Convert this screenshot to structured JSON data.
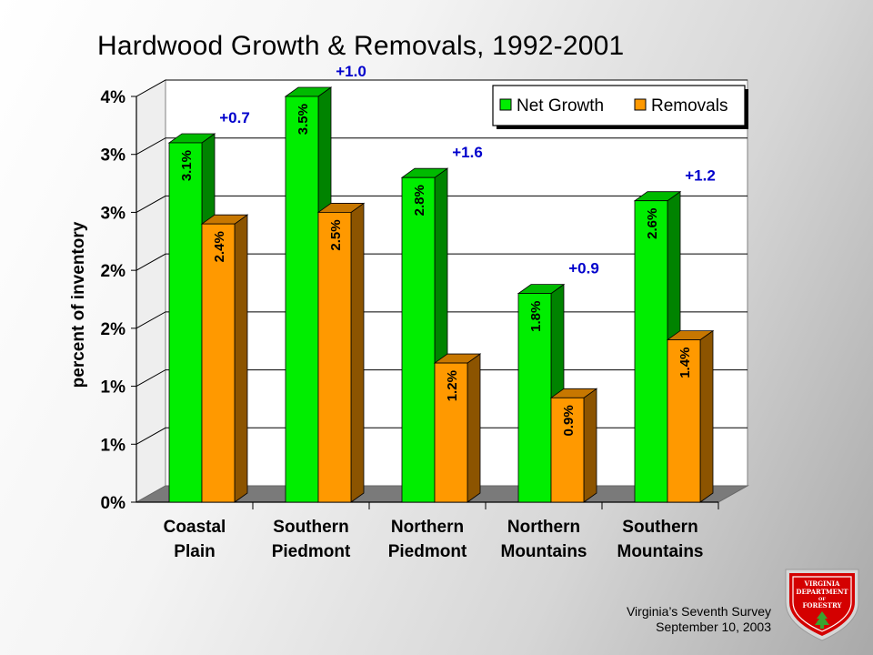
{
  "title": "Hardwood Growth & Removals, 1992-2001",
  "footer": {
    "line1": "Virginia’s Seventh Survey",
    "line2": "September 10, 2003"
  },
  "logo": {
    "line1": "VIRGINIA",
    "line2": "DEPARTMENT",
    "line3": "OF",
    "line4": "FORESTRY"
  },
  "chart_data": {
    "type": "bar",
    "title": "Hardwood Growth & Removals, 1992-2001",
    "ylabel": "percent of inventory",
    "xlabel": "",
    "categories": [
      [
        "Coastal",
        "Plain"
      ],
      [
        "Southern",
        "Piedmont"
      ],
      [
        "Northern",
        "Piedmont"
      ],
      [
        "Northern",
        "Mountains"
      ],
      [
        "Southern",
        "Mountains"
      ]
    ],
    "series": [
      {
        "name": "Net Growth",
        "color": "#00ee00",
        "values": [
          3.1,
          3.5,
          2.8,
          1.8,
          2.6
        ],
        "labels": [
          "3.1%",
          "3.5%",
          "2.8%",
          "1.8%",
          "2.6%"
        ]
      },
      {
        "name": "Removals",
        "color": "#ff9900",
        "values": [
          2.4,
          2.5,
          1.2,
          0.9,
          1.4
        ],
        "labels": [
          "2.4%",
          "2.5%",
          "1.2%",
          "0.9%",
          "1.4%"
        ]
      }
    ],
    "differences": [
      "+0.7",
      "+1.0",
      "+1.6",
      "+0.9",
      "+1.2"
    ],
    "ylim": [
      0,
      3.5
    ],
    "yticks": [
      0,
      0.5,
      1.0,
      1.5,
      2.0,
      2.5,
      3.0,
      3.5
    ],
    "ytick_labels": [
      "0%",
      "1%",
      "1%",
      "2%",
      "2%",
      "3%",
      "3%",
      "4%"
    ],
    "grid": true,
    "legend": "top-right",
    "annotation_color": "#0000cc"
  }
}
